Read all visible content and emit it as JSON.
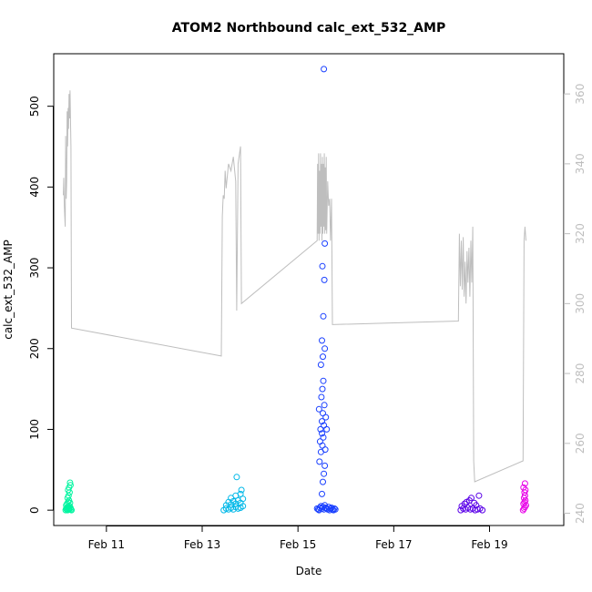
{
  "chart_data": {
    "type": "scatter",
    "title": "ATOM2 Northbound calc_ext_532_AMP",
    "xlabel": "Date",
    "ylabel": "calc_ext_532_AMP",
    "x_ticks": [
      "Feb 11",
      "Feb 13",
      "Feb 15",
      "Feb 17",
      "Feb 19"
    ],
    "x_tick_days": [
      11,
      13,
      15,
      17,
      19
    ],
    "xlim_days": [
      9.9,
      20.55
    ],
    "ylim": [
      -19,
      565
    ],
    "y_ticks": [
      0,
      100,
      200,
      300,
      400,
      500
    ],
    "y2lim": [
      236.5,
      371.5
    ],
    "y2_ticks": [
      240,
      260,
      280,
      300,
      320,
      340,
      360
    ],
    "grid": false,
    "colors": {
      "axis": "#000000",
      "secondary_axis": "#bebebe",
      "secondary_line": "#bebebe"
    },
    "series": [
      {
        "marker": "open-circle",
        "color": "#00f5a0",
        "x_days": [
          10.15,
          10.16,
          10.17,
          10.18,
          10.19,
          10.2,
          10.21,
          10.22,
          10.23,
          10.24,
          10.25,
          10.26,
          10.27,
          10.16,
          10.18,
          10.2,
          10.22,
          10.24,
          10.19,
          10.21,
          10.23,
          10.2,
          10.22,
          10.24,
          10.25
        ],
        "y": [
          0,
          2,
          1,
          3,
          0,
          4,
          2,
          1,
          5,
          2,
          3,
          1,
          0,
          6,
          8,
          10,
          12,
          9,
          15,
          18,
          22,
          25,
          28,
          34,
          31
        ]
      },
      {
        "marker": "open-circle",
        "color": "#00b8e8",
        "x_days": [
          13.45,
          13.5,
          13.55,
          13.6,
          13.65,
          13.7,
          13.75,
          13.8,
          13.85,
          13.5,
          13.6,
          13.7,
          13.8,
          13.55,
          13.65,
          13.75,
          13.85,
          13.6,
          13.7,
          13.8,
          13.72,
          13.82
        ],
        "y": [
          0,
          2,
          1,
          3,
          1,
          4,
          2,
          3,
          5,
          6,
          7,
          8,
          9,
          10,
          11,
          12,
          14,
          15,
          18,
          20,
          41,
          25
        ]
      },
      {
        "marker": "open-circle",
        "color": "#1a40ff",
        "x_days": [
          15.4,
          15.42,
          15.44,
          15.46,
          15.48,
          15.5,
          15.52,
          15.54,
          15.56,
          15.58,
          15.6,
          15.62,
          15.64,
          15.66,
          15.68,
          15.7,
          15.72,
          15.74,
          15.76,
          15.78,
          15.5,
          15.52,
          15.54,
          15.56,
          15.45,
          15.48,
          15.51,
          15.53,
          15.47,
          15.5,
          15.52,
          15.55,
          15.49,
          15.51,
          15.53,
          15.57,
          15.46,
          15.5,
          15.54,
          15.58,
          15.44,
          15.48,
          15.52,
          15.56,
          15.6,
          15.5,
          15.53,
          15.55,
          15.51,
          15.56,
          15.54
        ],
        "y": [
          2,
          1,
          0,
          3,
          5,
          2,
          4,
          1,
          6,
          3,
          2,
          1,
          4,
          0,
          2,
          3,
          1,
          0,
          2,
          1,
          20,
          35,
          45,
          55,
          60,
          72,
          80,
          90,
          100,
          110,
          120,
          130,
          140,
          150,
          160,
          75,
          85,
          95,
          105,
          115,
          125,
          180,
          190,
          200,
          100,
          210,
          240,
          285,
          302,
          330,
          546
        ]
      },
      {
        "marker": "open-circle",
        "color": "#5a00e8",
        "x_days": [
          18.4,
          18.45,
          18.5,
          18.55,
          18.6,
          18.65,
          18.7,
          18.75,
          18.8,
          18.85,
          18.42,
          18.48,
          18.52,
          18.58,
          18.62,
          18.68,
          18.72,
          18.78
        ],
        "y": [
          0,
          2,
          1,
          3,
          1,
          2,
          0,
          1,
          2,
          0,
          5,
          8,
          10,
          12,
          15,
          9,
          6,
          18
        ]
      },
      {
        "marker": "open-circle",
        "color": "#e800e8",
        "x_days": [
          19.7,
          19.72,
          19.74,
          19.76,
          19.71,
          19.73,
          19.75,
          19.72,
          19.74,
          19.73,
          19.75,
          19.71,
          19.74
        ],
        "y": [
          0,
          2,
          4,
          6,
          8,
          10,
          12,
          15,
          18,
          22,
          25,
          28,
          33
        ]
      }
    ],
    "secondary_line": {
      "y_axis": "right",
      "points": [
        [
          10.1,
          331
        ],
        [
          10.11,
          336
        ],
        [
          10.12,
          328
        ],
        [
          10.13,
          325
        ],
        [
          10.14,
          322
        ],
        [
          10.15,
          348
        ],
        [
          10.16,
          330
        ],
        [
          10.17,
          335
        ],
        [
          10.18,
          355
        ],
        [
          10.19,
          345
        ],
        [
          10.2,
          356
        ],
        [
          10.21,
          350
        ],
        [
          10.22,
          360
        ],
        [
          10.23,
          353
        ],
        [
          10.24,
          361
        ],
        [
          10.26,
          345
        ],
        [
          10.27,
          293
        ],
        [
          13.4,
          285
        ],
        [
          13.42,
          325
        ],
        [
          13.44,
          331
        ],
        [
          13.46,
          330
        ],
        [
          13.48,
          338
        ],
        [
          13.5,
          333
        ],
        [
          13.55,
          340
        ],
        [
          13.6,
          338
        ],
        [
          13.65,
          342
        ],
        [
          13.7,
          335
        ],
        [
          13.72,
          298
        ],
        [
          13.75,
          340
        ],
        [
          13.78,
          343
        ],
        [
          13.8,
          345
        ],
        [
          13.82,
          300
        ],
        [
          15.4,
          318
        ],
        [
          15.41,
          340
        ],
        [
          15.42,
          320
        ],
        [
          15.43,
          343
        ],
        [
          15.44,
          318
        ],
        [
          15.45,
          338
        ],
        [
          15.46,
          320
        ],
        [
          15.47,
          343
        ],
        [
          15.48,
          322
        ],
        [
          15.49,
          340
        ],
        [
          15.5,
          318
        ],
        [
          15.51,
          342
        ],
        [
          15.52,
          320
        ],
        [
          15.53,
          340
        ],
        [
          15.54,
          322
        ],
        [
          15.55,
          343
        ],
        [
          15.56,
          320
        ],
        [
          15.57,
          339
        ],
        [
          15.58,
          321
        ],
        [
          15.59,
          342
        ],
        [
          15.6,
          320
        ],
        [
          15.62,
          335
        ],
        [
          15.64,
          328
        ],
        [
          15.66,
          330
        ],
        [
          15.68,
          318
        ],
        [
          15.7,
          330
        ],
        [
          15.72,
          294
        ],
        [
          18.35,
          295
        ],
        [
          18.37,
          320
        ],
        [
          18.39,
          305
        ],
        [
          18.41,
          318
        ],
        [
          18.43,
          304
        ],
        [
          18.45,
          319
        ],
        [
          18.47,
          302
        ],
        [
          18.49,
          312
        ],
        [
          18.51,
          300
        ],
        [
          18.53,
          315
        ],
        [
          18.55,
          306
        ],
        [
          18.57,
          316
        ],
        [
          18.59,
          302
        ],
        [
          18.61,
          318
        ],
        [
          18.63,
          306
        ],
        [
          18.65,
          322
        ],
        [
          18.67,
          255
        ],
        [
          18.69,
          249
        ],
        [
          19.7,
          255
        ],
        [
          19.72,
          318
        ],
        [
          19.74,
          322
        ],
        [
          19.76,
          318
        ]
      ]
    }
  }
}
